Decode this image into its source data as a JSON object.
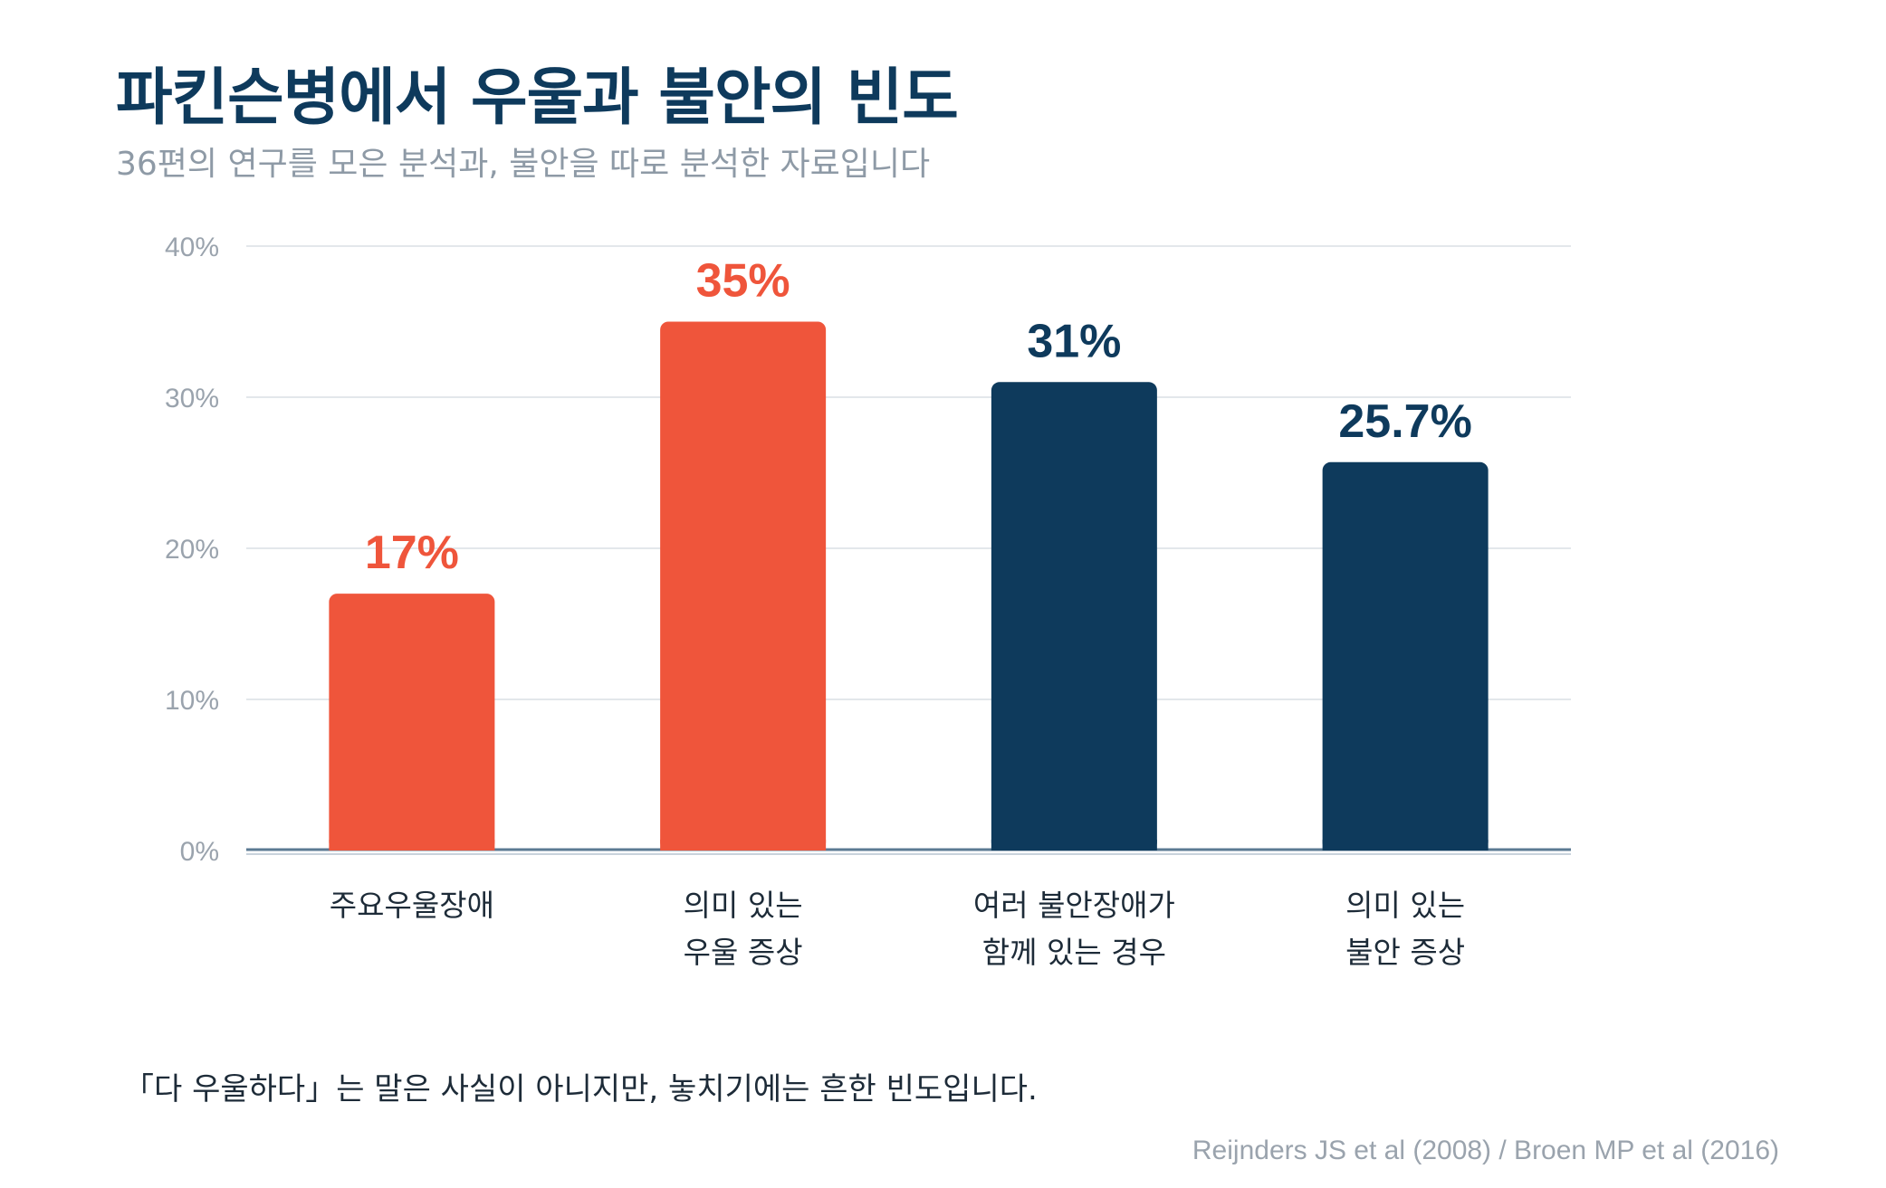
{
  "header": {
    "title": "파킨슨병에서 우울과 불안의 빈도",
    "subtitle": "36편의 연구를 모은 분석과, 불안을 따로 분석한 자료입니다"
  },
  "chart_data": {
    "type": "bar",
    "title": "파킨슨병에서 우울과 불안의 빈도",
    "subtitle": "36편의 연구를 모은 분석과, 불안을 따로 분석한 자료입니다",
    "categories": [
      [
        "주요우울장애"
      ],
      [
        "의미 있는",
        "우울 증상"
      ],
      [
        "여러 불안장애가",
        "함께 있는 경우"
      ],
      [
        "의미 있는",
        "불안 증상"
      ]
    ],
    "values": [
      17,
      35,
      31,
      25.7
    ],
    "value_labels": [
      "17%",
      "35%",
      "31%",
      "25.7%"
    ],
    "bar_colors": [
      "#ef553b",
      "#ef553b",
      "#0e3a5c",
      "#0e3a5c"
    ],
    "ylim": [
      0,
      40
    ],
    "yticks": [
      0,
      10,
      20,
      30,
      40
    ],
    "ytick_labels": [
      "0%",
      "10%",
      "20%",
      "30%",
      "40%"
    ],
    "xlabel": "",
    "ylabel": "",
    "grid": true,
    "legend": "none"
  },
  "footer": {
    "note": "「다 우울하다」는 말은 사실이 아니지만, 놓치기에는 흔한 빈도입니다.",
    "source": "Reijnders JS et al (2008) / Broen MP et al (2016)"
  },
  "colors": {
    "title": "#0e3a5c",
    "subtitle": "#8e9aa6",
    "depression": "#ef553b",
    "anxiety": "#0e3a5c",
    "grid": "#e3e7eb",
    "axis": "#5b7a93"
  }
}
